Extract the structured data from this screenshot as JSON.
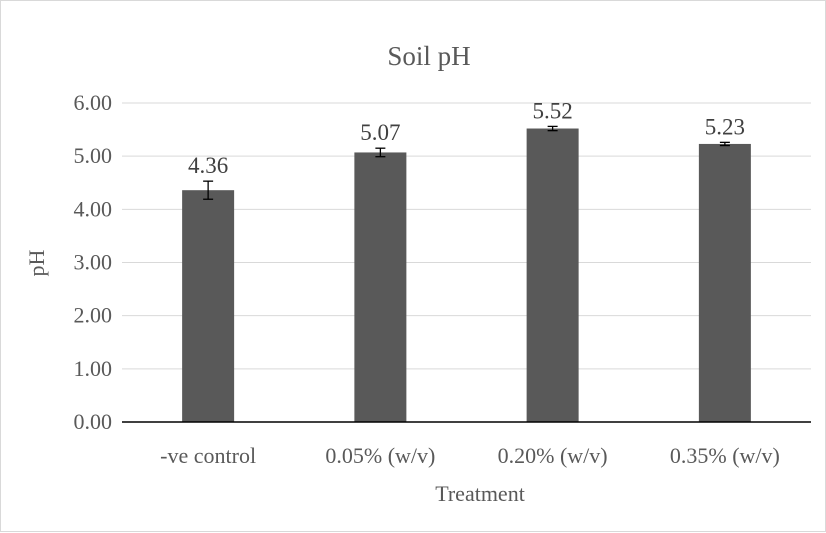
{
  "chart_data": {
    "type": "bar",
    "title": "Soil pH",
    "xlabel": "Treatment",
    "ylabel": "pH",
    "categories": [
      "-ve control",
      "0.05% (w/v)",
      "0.20% (w/v)",
      "0.35% (w/v)"
    ],
    "values": [
      4.36,
      5.07,
      5.52,
      5.23
    ],
    "value_labels": [
      "4.36",
      "5.07",
      "5.52",
      "5.23"
    ],
    "error": [
      0.17,
      0.08,
      0.04,
      0.03
    ],
    "ylim": [
      0,
      6
    ],
    "yticks": [
      0,
      1,
      2,
      3,
      4,
      5,
      6
    ],
    "ytick_labels": [
      "0.00",
      "1.00",
      "2.00",
      "3.00",
      "4.00",
      "5.00",
      "6.00"
    ],
    "grid": true,
    "legend": "none",
    "colors": {
      "bar": "#595959",
      "grid": "#d9d9d9",
      "axis": "#000000",
      "text": "#595959"
    }
  }
}
